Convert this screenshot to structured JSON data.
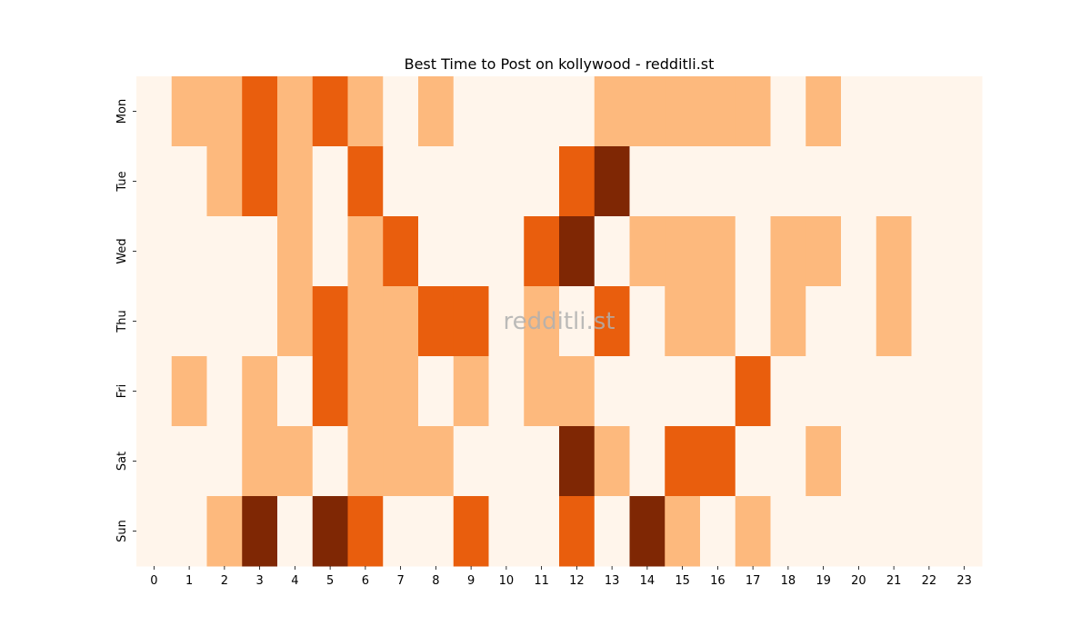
{
  "chart_data": {
    "type": "heatmap",
    "title": "Best Time to Post on kollywood - redditli.st",
    "watermark": "redditli.st",
    "xlabel": "",
    "ylabel": "",
    "x": [
      "0",
      "1",
      "2",
      "3",
      "4",
      "5",
      "6",
      "7",
      "8",
      "9",
      "10",
      "11",
      "12",
      "13",
      "14",
      "15",
      "16",
      "17",
      "18",
      "19",
      "20",
      "21",
      "22",
      "23"
    ],
    "y": [
      "Mon",
      "Tue",
      "Wed",
      "Thu",
      "Fri",
      "Sat",
      "Sun"
    ],
    "colormap": "Oranges",
    "colors": [
      "#fff5eb",
      "#fdb97d",
      "#e95e0d",
      "#7f2704"
    ],
    "values": [
      [
        0,
        1,
        1,
        2,
        1,
        2,
        1,
        0,
        1,
        0,
        0,
        0,
        0,
        1,
        1,
        1,
        1,
        1,
        0,
        1,
        0,
        0,
        0,
        0
      ],
      [
        0,
        0,
        1,
        2,
        1,
        0,
        2,
        0,
        0,
        0,
        0,
        0,
        2,
        3,
        0,
        0,
        0,
        0,
        0,
        0,
        0,
        0,
        0,
        0
      ],
      [
        0,
        0,
        0,
        0,
        1,
        0,
        1,
        2,
        0,
        0,
        0,
        2,
        3,
        0,
        1,
        1,
        1,
        0,
        1,
        1,
        0,
        1,
        0,
        0
      ],
      [
        0,
        0,
        0,
        0,
        1,
        2,
        1,
        1,
        2,
        2,
        0,
        1,
        0,
        2,
        0,
        1,
        1,
        0,
        1,
        0,
        0,
        1,
        0,
        0
      ],
      [
        0,
        1,
        0,
        1,
        0,
        2,
        1,
        1,
        0,
        1,
        0,
        1,
        1,
        0,
        0,
        0,
        0,
        2,
        0,
        0,
        0,
        0,
        0,
        0
      ],
      [
        0,
        0,
        0,
        1,
        1,
        0,
        1,
        1,
        1,
        0,
        0,
        0,
        3,
        1,
        0,
        2,
        2,
        0,
        0,
        1,
        0,
        0,
        0,
        0
      ],
      [
        0,
        0,
        1,
        3,
        0,
        3,
        2,
        0,
        0,
        2,
        0,
        0,
        2,
        0,
        3,
        1,
        0,
        1,
        0,
        0,
        0,
        0,
        0,
        0
      ]
    ]
  }
}
